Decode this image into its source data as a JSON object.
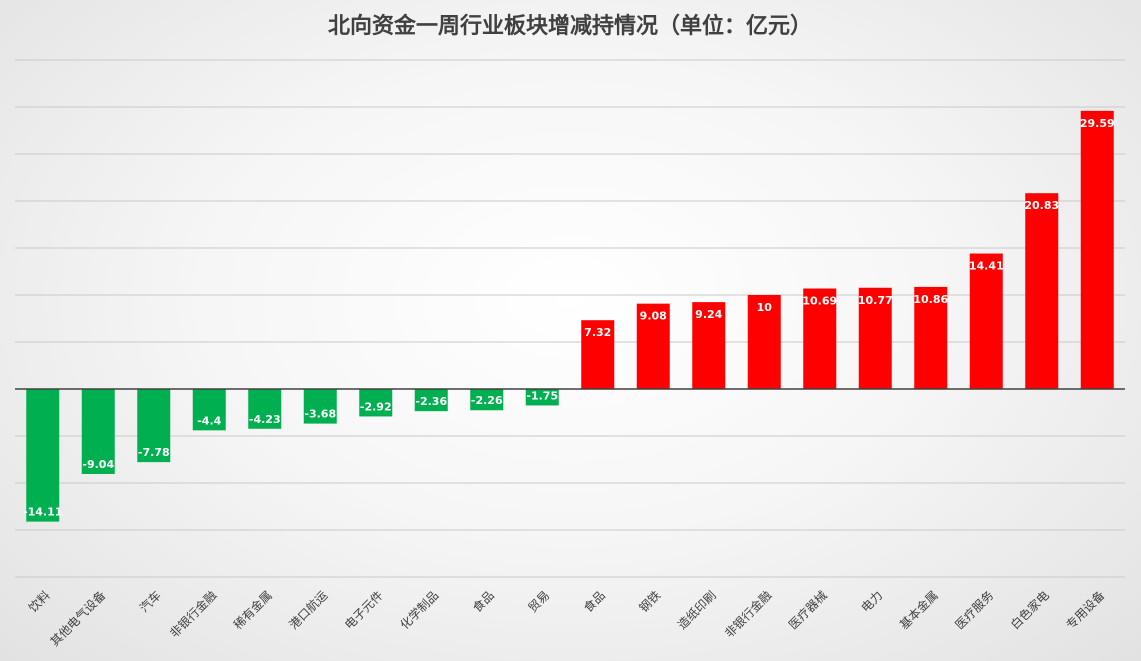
{
  "chart_data": {
    "type": "bar",
    "title": "北向资金一周行业板块增减持情况（单位：亿元）",
    "xlabel": "",
    "ylabel": "",
    "ylim": [
      -20,
      35
    ],
    "grid": true,
    "legend": "none",
    "colors": {
      "positive": "#ff0000",
      "negative": "#00b050"
    },
    "categories": [
      "饮料",
      "其他电气设备",
      "汽车",
      "非银行金融",
      "稀有金属",
      "港口航运",
      "电子元件",
      "化学制品",
      "食品",
      "贸易",
      "食品",
      "钢铁",
      "造纸印刷",
      "非银行金融",
      "医疗器械",
      "电力",
      "基本金属",
      "医疗服务",
      "白色家电",
      "专用设备"
    ],
    "values": [
      -14.11,
      -9.04,
      -7.78,
      -4.4,
      -4.23,
      -3.68,
      -2.92,
      -2.36,
      -2.26,
      -1.75,
      7.32,
      9.08,
      9.24,
      10,
      10.69,
      10.77,
      10.86,
      14.41,
      20.83,
      29.59
    ],
    "value_labels": [
      "-14.11",
      "-9.04",
      "-7.78",
      "-4.4",
      "-4.23",
      "-3.68",
      "-2.92",
      "-2.36",
      "-2.26",
      "-1.75",
      "7.32",
      "9.08",
      "9.24",
      "10",
      "10.69",
      "10.77",
      "10.86",
      "14.41",
      "20.83",
      "29.59"
    ]
  }
}
